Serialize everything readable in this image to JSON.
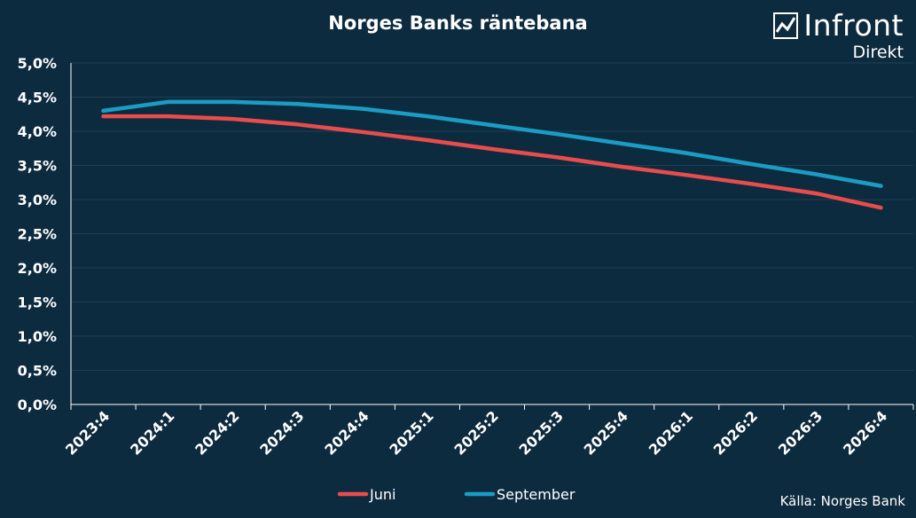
{
  "logo": {
    "name": "Infront",
    "sub": "Direkt"
  },
  "source": "Källa:  Norges Bank",
  "chart_data": {
    "type": "line",
    "title": "Norges Banks räntebana",
    "categories": [
      "2023:4",
      "2024:1",
      "2024:2",
      "2024:3",
      "2024:4",
      "2025:1",
      "2025:2",
      "2025:3",
      "2025:4",
      "2026:1",
      "2026:2",
      "2026:3",
      "2026:4"
    ],
    "ylim": [
      0,
      5
    ],
    "yticks": [
      0,
      0.5,
      1,
      1.5,
      2,
      2.5,
      3,
      3.5,
      4,
      4.5,
      5
    ],
    "ytick_labels": [
      "0,0%",
      "0,5%",
      "1,0%",
      "1,5%",
      "2,0%",
      "2,5%",
      "3,0%",
      "3,5%",
      "4,0%",
      "4,5%",
      "5,0%"
    ],
    "grid": true,
    "legend_position": "bottom",
    "series": [
      {
        "name": "Juni",
        "color": "#e84c4c",
        "x": [
          0,
          1,
          2,
          3,
          4,
          5,
          6,
          7,
          8,
          9,
          10,
          11,
          12
        ],
        "values": [
          4.22,
          4.22,
          4.18,
          4.1,
          3.99,
          3.87,
          3.74,
          3.62,
          3.48,
          3.36,
          3.23,
          3.09,
          2.88
        ]
      },
      {
        "name": "September",
        "color": "#1b9cc4",
        "x": [
          0,
          1,
          2,
          3,
          4,
          5,
          6,
          7,
          8,
          9,
          10,
          11,
          12
        ],
        "values": [
          4.3,
          4.43,
          4.43,
          4.4,
          4.33,
          4.22,
          4.09,
          3.96,
          3.82,
          3.68,
          3.52,
          3.37,
          3.2
        ]
      }
    ]
  }
}
